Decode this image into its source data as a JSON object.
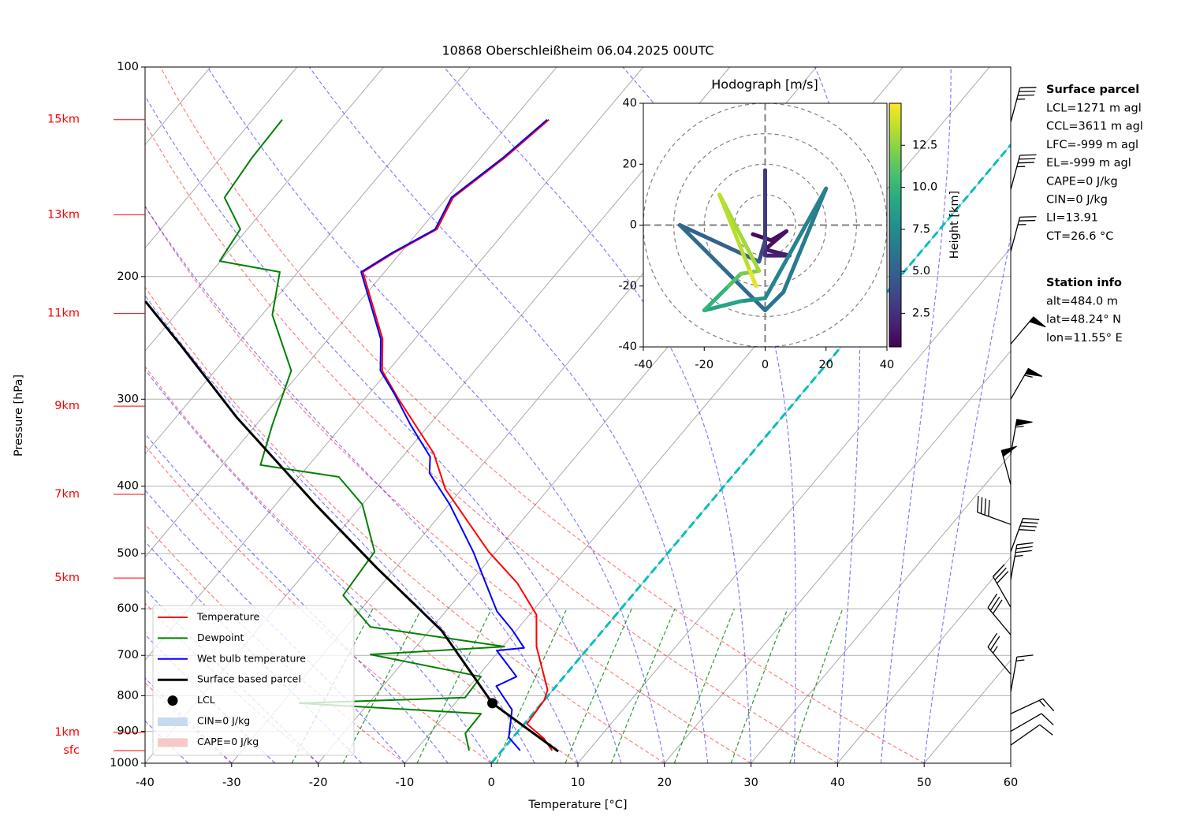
{
  "chart_data": [
    {
      "type": "skewt",
      "title": "10868 Oberschleißheim 06.04.2025 00UTC",
      "xlabel": "Temperature [°C]",
      "ylabel": "Pressure [hPa]",
      "xlim": [
        -40,
        60
      ],
      "xticks": [
        -40,
        -30,
        -20,
        -10,
        0,
        10,
        20,
        30,
        40,
        50,
        60
      ],
      "ylim": [
        1000,
        100
      ],
      "yticks": [
        100,
        200,
        300,
        400,
        500,
        600,
        700,
        800,
        900,
        1000
      ],
      "log_y": true,
      "grid": true,
      "legend": "lower left",
      "series": [
        {
          "name": "Temperature",
          "color": "#ff0000",
          "pressure": [
            959,
            922,
            878,
            812,
            785,
            680,
            612,
            552,
            497,
            404,
            359,
            299,
            273,
            246,
            197,
            185,
            171,
            154,
            135,
            119
          ],
          "values": [
            5.8,
            3.7,
            0.3,
            0.0,
            -0.6,
            -6.1,
            -9.2,
            -14.4,
            -20.8,
            -31.9,
            -36.7,
            -46.2,
            -50.7,
            -53.7,
            -62.5,
            -60.8,
            -58.1,
            -59.3,
            -57.2,
            -55.8
          ]
        },
        {
          "name": "Dewpoint",
          "color": "#008000",
          "pressure": [
            959,
            906,
            849,
            820,
            805,
            751,
            698,
            680,
            637,
            574,
            497,
            425,
            388,
            373,
            327,
            273,
            227,
            197,
            190,
            171,
            154,
            135,
            119
          ],
          "values": [
            -3.8,
            -5.9,
            -6.0,
            -28.0,
            -9.4,
            -9.6,
            -24.5,
            -9.8,
            -27.2,
            -33.4,
            -34.0,
            -40.0,
            -45.4,
            -55.6,
            -58.1,
            -61.2,
            -68.8,
            -72.1,
            -80.1,
            -80.8,
            -85.7,
            -86.4,
            -86.6
          ]
        },
        {
          "name": "Wet bulb temperature",
          "color": "#0000ff",
          "pressure": [
            959,
            918,
            838,
            775,
            751,
            689,
            683,
            645,
            605,
            497,
            425,
            383,
            363,
            327,
            295,
            273,
            246,
            197,
            185,
            171,
            154,
            135,
            119
          ],
          "values": [
            2.1,
            -0.5,
            -2.8,
            -6.9,
            -5.5,
            -10.3,
            -7.4,
            -10.4,
            -14.1,
            -22.6,
            -29.9,
            -35.3,
            -36.8,
            -42.1,
            -47.0,
            -50.9,
            -53.9,
            -62.7,
            -61.0,
            -58.3,
            -59.5,
            -57.4,
            -56.0
          ]
        },
        {
          "name": "Surface based parcel",
          "color": "#000000",
          "pressure": [
            962,
            820,
            645,
            524,
            425,
            319,
            252,
            217
          ],
          "values": [
            6.6,
            -5.7,
            -18.6,
            -32.2,
            -45.4,
            -62.9,
            -76.2,
            -84.8
          ]
        }
      ],
      "lcl": {
        "name": "LCL",
        "pressure": 820,
        "temperature": -5.7,
        "color": "#000000"
      },
      "cin": {
        "name": "CIN=0 J/kg",
        "color": "#c6dbef"
      },
      "cape": {
        "name": "CAPE=0 J/kg",
        "color": "#f6c9c9"
      },
      "height_labels": {
        "labels": [
          "15km",
          "13km",
          "11km",
          "9km",
          "7km",
          "5km",
          "1km",
          "sfc"
        ],
        "pressure": [
          119,
          163,
          226,
          307,
          411,
          542,
          903,
          959
        ],
        "color": "#ff0000"
      },
      "wind_barbs": {
        "pressure": [
          120,
          150,
          184,
          250,
          300,
          360,
          398,
          454,
          497,
          545,
          597,
          654,
          745,
          790,
          849,
          900,
          942
        ],
        "direction": [
          15,
          15,
          15,
          40,
          30,
          10,
          345,
          290,
          20,
          10,
          330,
          320,
          320,
          10,
          65,
          60,
          55
        ],
        "speed": [
          35,
          35,
          25,
          50,
          55,
          55,
          50,
          40,
          40,
          35,
          30,
          30,
          25,
          15,
          15,
          10,
          10
        ]
      },
      "parcel_info": {
        "title": "Surface parcel",
        "lines": [
          "LCL=1271 m agl",
          "CCL=3611 m agl",
          "LFC=-999 m agl",
          "EL=-999 m agl",
          "CAPE=0 J/kg",
          "CIN=0 J/kg",
          "LI=13.91",
          "CT=26.6 °C"
        ]
      },
      "station_info": {
        "title": "Station info",
        "lines": [
          "alt=484.0 m",
          "lat=48.24° N",
          "lon=11.55° E"
        ]
      }
    },
    {
      "type": "hodograph",
      "title": "Hodograph [m/s]",
      "xlim": [
        -40,
        40
      ],
      "xticks": [
        -40,
        -20,
        0,
        20,
        40
      ],
      "ylim": [
        -40,
        40
      ],
      "yticks": [
        -40,
        -20,
        0,
        20,
        40
      ],
      "u": [
        -4,
        2,
        7,
        0,
        8,
        0,
        0,
        0,
        -2,
        -28,
        0,
        6,
        20,
        0,
        -8,
        -20,
        -12,
        -8,
        -2,
        -15,
        -3,
        -5
      ],
      "v": [
        -3,
        -5,
        -2,
        -8,
        -10,
        -10,
        18,
        -5,
        -12,
        0,
        -28,
        -22,
        12,
        -24,
        -25,
        -28,
        -20,
        -16,
        -15,
        10,
        -20,
        -15
      ],
      "height": [
        0.5,
        0.8,
        1.0,
        1.2,
        1.5,
        1.8,
        2.5,
        3.0,
        3.5,
        5.0,
        5.5,
        6.0,
        6.5,
        7.0,
        8.0,
        9.0,
        10.0,
        11.0,
        12.0,
        13.0,
        13.5,
        14.5
      ],
      "colorbar": {
        "label": "Height [km]",
        "lim": [
          0.5,
          15
        ],
        "ticks": [
          2.5,
          {
            "value": 5,
            "label": "5.0"
          },
          7.5,
          {
            "value": 10,
            "label": "10.0"
          },
          12.5
        ]
      }
    }
  ]
}
